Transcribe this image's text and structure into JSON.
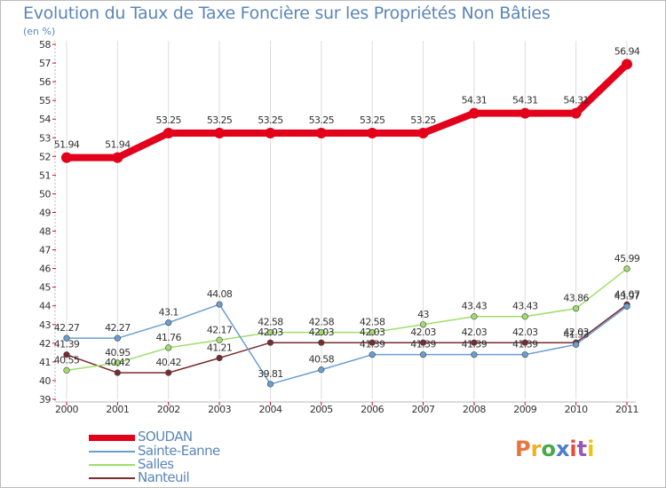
{
  "title": "Evolution du Taux de Taxe Foncière sur les Propriétés Non Bâties",
  "unit_label": "(en %)",
  "logo": {
    "text": "Proxiti",
    "colors": [
      "#e8743b",
      "#f0b128",
      "#4aa84a",
      "#4a7fcf",
      "#e74c3c",
      "#9b59b6",
      "#f1c40f"
    ]
  },
  "chart_data": {
    "type": "line",
    "title": "Evolution du Taux de Taxe Foncière sur les Propriétés Non Bâties",
    "ylabel": "(en %)",
    "xlabel": "",
    "x": [
      "2000",
      "2001",
      "2002",
      "2003",
      "2004",
      "2005",
      "2006",
      "2007",
      "2008",
      "2009",
      "2010",
      "2011"
    ],
    "ylim": [
      39,
      58
    ],
    "yticks": [
      39,
      40,
      41,
      42,
      43,
      44,
      45,
      46,
      47,
      48,
      49,
      50,
      51,
      52,
      53,
      54,
      55,
      56,
      57,
      58
    ],
    "grid": "vertical",
    "legend_position": "bottom-left",
    "series": [
      {
        "name": "SOUDAN",
        "color": "#e3001b",
        "width": 8,
        "values": [
          51.94,
          51.94,
          53.25,
          53.25,
          53.25,
          53.25,
          53.25,
          53.25,
          54.31,
          54.31,
          54.31,
          56.94
        ],
        "labels": [
          "51.94",
          "51.94",
          "53.25",
          "53.25",
          "53.25",
          "53.25",
          "53.25",
          "53.25",
          "54.31",
          "54.31",
          "54.31",
          "56.94"
        ]
      },
      {
        "name": "Sainte-Eanne",
        "color": "#6a9ed0",
        "width": 1.5,
        "values": [
          42.27,
          42.27,
          43.1,
          44.08,
          39.81,
          40.58,
          41.39,
          41.39,
          41.39,
          41.39,
          41.93,
          43.97
        ],
        "labels": [
          "42.27",
          "42.27",
          "43.1",
          "44.08",
          "39.81",
          "40.58",
          "41.39",
          "41.39",
          "41.39",
          "41.39",
          "41.93",
          "43.97"
        ]
      },
      {
        "name": "Salles",
        "color": "#9ede6b",
        "width": 1.5,
        "values": [
          40.55,
          40.95,
          41.76,
          42.17,
          42.58,
          42.58,
          42.58,
          43,
          43.43,
          43.43,
          43.86,
          45.99
        ],
        "labels": [
          "40.55",
          "40.95",
          "41.76",
          "42.17",
          "42.58",
          "42.58",
          "42.58",
          "43",
          "43.43",
          "43.43",
          "43.86",
          "45.99"
        ]
      },
      {
        "name": "Nanteuil",
        "color": "#7a2b2e",
        "width": 1.5,
        "values": [
          41.39,
          40.42,
          40.42,
          41.21,
          42.03,
          42.03,
          42.03,
          42.03,
          42.03,
          42.03,
          42.03,
          44.07
        ],
        "labels": [
          "41.39",
          "40.42",
          "40.42",
          "41.21",
          "42.03",
          "42.03",
          "42.03",
          "42.03",
          "42.03",
          "42.03",
          "42.03",
          "44.07"
        ]
      }
    ]
  }
}
